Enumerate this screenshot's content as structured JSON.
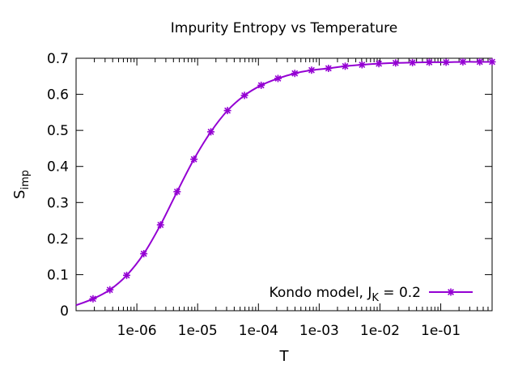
{
  "chart_data": {
    "type": "line",
    "title": "Impurity Entropy vs Temperature",
    "xlabel": "T",
    "ylabel": "S",
    "ylabel_subscript": "imp",
    "x_scale": "log",
    "xlim": [
      1e-07,
      0.7
    ],
    "ylim": [
      0,
      0.7
    ],
    "yticks": [
      0,
      0.1,
      0.2,
      0.3,
      0.4,
      0.5,
      0.6,
      0.7
    ],
    "ytick_labels": [
      "0",
      "0.1",
      "0.2",
      "0.3",
      "0.4",
      "0.5",
      "0.6",
      "0.7"
    ],
    "xticks": [
      1e-06,
      1e-05,
      0.0001,
      0.001,
      0.01,
      0.1
    ],
    "xtick_labels": [
      "1e-06",
      "1e-05",
      "1e-04",
      "1e-03",
      "1e-02",
      "1e-01"
    ],
    "legend_position": "bottom-right",
    "grid": false,
    "series": [
      {
        "name": "Kondo model, J",
        "name_subscript": "K",
        "name_suffix": " = 0.2",
        "color": "#9400d3",
        "marker": "asterisk",
        "x": [
          1e-07,
          1.9e-07,
          3.6e-07,
          6.8e-07,
          1.3e-06,
          2.45e-06,
          4.6e-06,
          8.7e-06,
          1.65e-05,
          3.1e-05,
          5.9e-05,
          0.000111,
          0.00021,
          0.000397,
          0.00075,
          0.00142,
          0.00268,
          0.00507,
          0.0096,
          0.0181,
          0.0343,
          0.0648,
          0.1225,
          0.2316,
          0.438,
          0.7
        ],
        "y": [
          0.015,
          0.033,
          0.058,
          0.098,
          0.158,
          0.238,
          0.33,
          0.42,
          0.496,
          0.555,
          0.597,
          0.625,
          0.644,
          0.658,
          0.667,
          0.672,
          0.678,
          0.682,
          0.685,
          0.687,
          0.688,
          0.689,
          0.689,
          0.69,
          0.69,
          0.69
        ],
        "markers_from_index": 1
      }
    ]
  }
}
